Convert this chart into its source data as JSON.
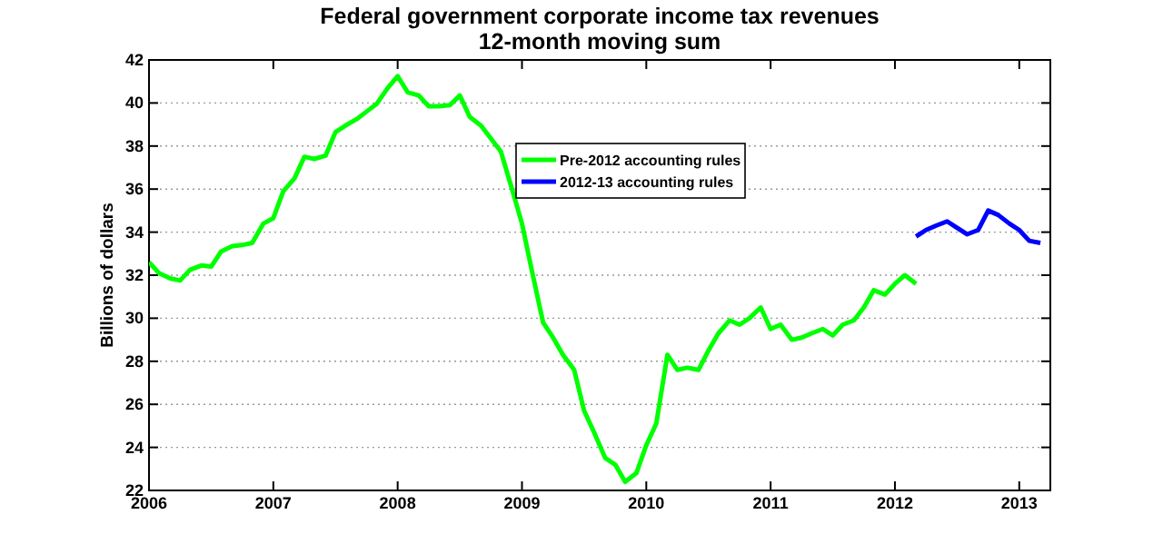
{
  "chart_data": {
    "type": "line",
    "title": "Federal government corporate income tax revenues",
    "subtitle": "12-month moving sum",
    "ylabel": "Billions of dollars",
    "series": [
      {
        "name": "Pre-2012 accounting rules",
        "color": "#00ff00",
        "x": [
          2006.0,
          2006.08,
          2006.17,
          2006.25,
          2006.33,
          2006.42,
          2006.5,
          2006.58,
          2006.67,
          2006.75,
          2006.83,
          2006.92,
          2007.0,
          2007.08,
          2007.17,
          2007.25,
          2007.33,
          2007.42,
          2007.5,
          2007.58,
          2007.67,
          2007.75,
          2007.83,
          2007.92,
          2008.0,
          2008.08,
          2008.17,
          2008.25,
          2008.33,
          2008.42,
          2008.5,
          2008.58,
          2008.67,
          2008.75,
          2008.83,
          2008.92,
          2009.0,
          2009.08,
          2009.17,
          2009.25,
          2009.33,
          2009.42,
          2009.5,
          2009.58,
          2009.67,
          2009.75,
          2009.83,
          2009.92,
          2010.0,
          2010.08,
          2010.17,
          2010.25,
          2010.33,
          2010.42,
          2010.5,
          2010.58,
          2010.67,
          2010.75,
          2010.83,
          2010.92,
          2011.0,
          2011.08,
          2011.17,
          2011.25,
          2011.33,
          2011.42,
          2011.5,
          2011.58,
          2011.67,
          2011.75,
          2011.83,
          2011.92,
          2012.0,
          2012.08,
          2012.17
        ],
        "values": [
          32.6,
          32.1,
          31.85,
          31.75,
          32.25,
          32.45,
          32.4,
          33.1,
          33.35,
          33.4,
          33.5,
          34.4,
          34.65,
          35.9,
          36.5,
          37.5,
          37.4,
          37.55,
          38.65,
          38.95,
          39.25,
          39.6,
          39.95,
          40.7,
          41.25,
          40.5,
          40.35,
          39.85,
          39.85,
          39.9,
          40.35,
          39.35,
          38.95,
          38.35,
          37.75,
          36.0,
          34.4,
          32.2,
          29.8,
          29.1,
          28.3,
          27.6,
          25.7,
          24.7,
          23.5,
          23.2,
          22.4,
          22.8,
          24.1,
          25.1,
          28.3,
          27.6,
          27.7,
          27.6,
          28.5,
          29.3,
          29.9,
          29.7,
          30.0,
          30.5,
          29.5,
          29.7,
          29.0,
          29.1,
          29.3,
          29.5,
          29.2,
          29.7,
          29.9,
          30.5,
          31.3,
          31.1,
          31.6,
          32.0,
          31.6
        ]
      },
      {
        "name": "2012-13 accounting rules",
        "color": "#0000ff",
        "x": [
          2012.17,
          2012.25,
          2012.33,
          2012.42,
          2012.5,
          2012.58,
          2012.67,
          2012.75,
          2012.83,
          2012.92,
          2013.0,
          2013.08,
          2013.17
        ],
        "values": [
          33.8,
          34.1,
          34.3,
          34.5,
          34.2,
          33.9,
          34.1,
          35.0,
          34.8,
          34.4,
          34.1,
          33.6,
          33.5
        ]
      }
    ],
    "xlim": [
      2006,
      2013.25
    ],
    "xticks": [
      2006,
      2007,
      2008,
      2009,
      2010,
      2011,
      2012,
      2013
    ],
    "ylim": [
      22,
      42
    ],
    "yticks": [
      22,
      24,
      26,
      28,
      30,
      32,
      34,
      36,
      38,
      40,
      42
    ],
    "grid": "y",
    "legend": "top",
    "line_style": "solid",
    "marker": "none"
  }
}
